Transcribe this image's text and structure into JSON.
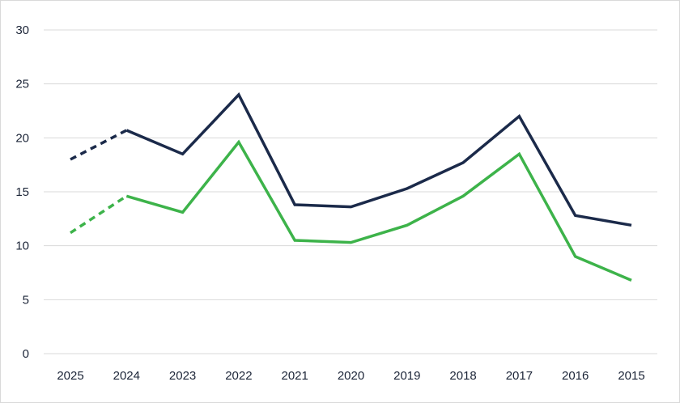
{
  "chart_data": {
    "type": "line",
    "title": "",
    "xlabel": "",
    "ylabel": "",
    "categories": [
      "2025",
      "2024",
      "2023",
      "2022",
      "2021",
      "2020",
      "2019",
      "2018",
      "2017",
      "2016",
      "2015"
    ],
    "ylim": [
      0,
      30
    ],
    "yticks": [
      0,
      5,
      10,
      15,
      20,
      25,
      30
    ],
    "grid": true,
    "legend": "none",
    "series": [
      {
        "color": "#1b2a4a",
        "values": [
          18.0,
          20.7,
          18.5,
          24.0,
          13.8,
          13.6,
          15.3,
          17.7,
          22.0,
          12.8,
          11.9
        ],
        "projected_from_index": 0,
        "projected_to_index": 1
      },
      {
        "color": "#3db34a",
        "values": [
          11.2,
          14.6,
          13.1,
          19.6,
          10.5,
          10.3,
          11.9,
          14.6,
          18.5,
          9.0,
          6.8
        ],
        "projected_from_index": 0,
        "projected_to_index": 1
      }
    ]
  }
}
